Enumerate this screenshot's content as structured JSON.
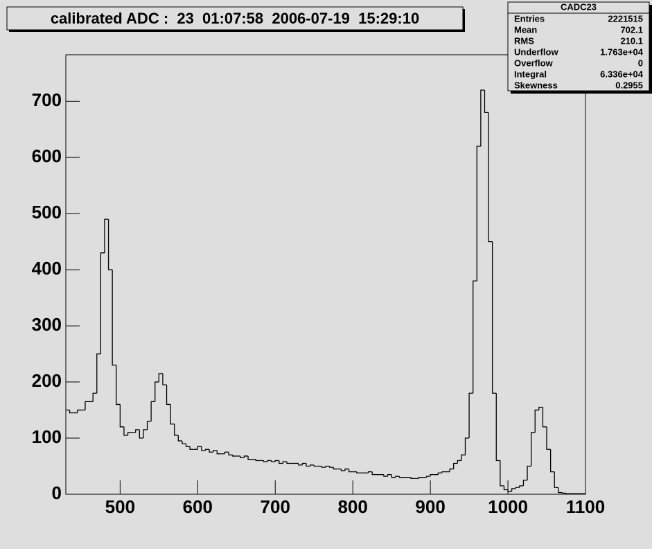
{
  "chart_data": {
    "type": "histogram",
    "title": "calibrated ADC :  23  01:07:58  2006-07-19  15:29:10",
    "color": "#000000",
    "xlim": [
      430,
      1100
    ],
    "ylim": [
      0,
      783
    ],
    "xticks": [
      500,
      600,
      700,
      800,
      900,
      1000,
      1100
    ],
    "yticks": [
      0,
      100,
      200,
      300,
      400,
      500,
      600,
      700
    ],
    "bins": [
      430,
      435,
      440,
      445,
      450,
      455,
      460,
      465,
      470,
      475,
      480,
      485,
      490,
      495,
      500,
      505,
      510,
      515,
      520,
      525,
      530,
      535,
      540,
      545,
      550,
      555,
      560,
      565,
      570,
      575,
      580,
      585,
      590,
      595,
      600,
      605,
      610,
      615,
      620,
      625,
      630,
      635,
      640,
      645,
      650,
      655,
      660,
      665,
      670,
      675,
      680,
      685,
      690,
      695,
      700,
      705,
      710,
      715,
      720,
      725,
      730,
      735,
      740,
      745,
      750,
      755,
      760,
      765,
      770,
      775,
      780,
      785,
      790,
      795,
      800,
      805,
      810,
      815,
      820,
      825,
      830,
      835,
      840,
      845,
      850,
      855,
      860,
      865,
      870,
      875,
      880,
      885,
      890,
      895,
      900,
      905,
      910,
      915,
      920,
      925,
      930,
      935,
      940,
      945,
      950,
      955,
      960,
      965,
      970,
      975,
      980,
      985,
      990,
      995,
      1000,
      1005,
      1010,
      1015,
      1020,
      1025,
      1030,
      1035,
      1040,
      1045,
      1050,
      1055,
      1060,
      1065,
      1070,
      1075,
      1080,
      1085,
      1090,
      1095,
      1100
    ],
    "counts": [
      150,
      145,
      145,
      150,
      150,
      165,
      165,
      180,
      250,
      430,
      490,
      400,
      230,
      160,
      120,
      105,
      110,
      110,
      115,
      100,
      115,
      130,
      165,
      200,
      215,
      195,
      160,
      125,
      105,
      95,
      90,
      85,
      80,
      80,
      85,
      78,
      80,
      75,
      78,
      72,
      72,
      75,
      70,
      68,
      68,
      65,
      68,
      62,
      62,
      60,
      60,
      58,
      60,
      58,
      60,
      55,
      58,
      55,
      55,
      55,
      52,
      55,
      50,
      52,
      50,
      50,
      48,
      50,
      48,
      45,
      45,
      42,
      45,
      40,
      40,
      38,
      38,
      38,
      40,
      35,
      35,
      35,
      32,
      35,
      30,
      32,
      30,
      30,
      30,
      28,
      28,
      30,
      30,
      32,
      35,
      35,
      38,
      40,
      40,
      45,
      55,
      60,
      70,
      100,
      180,
      380,
      620,
      720,
      680,
      450,
      180,
      60,
      15,
      8,
      5,
      10,
      12,
      15,
      25,
      50,
      110,
      150,
      155,
      120,
      80,
      40,
      12,
      3,
      2,
      1,
      1,
      1,
      1,
      1
    ]
  },
  "stats": {
    "title": "CADC23",
    "rows": [
      [
        "Entries",
        "2221515"
      ],
      [
        "Mean",
        "702.1"
      ],
      [
        "RMS",
        "210.1"
      ],
      [
        "Underflow",
        "1.763e+04"
      ],
      [
        "Overflow",
        "0"
      ],
      [
        "Integral",
        "6.336e+04"
      ],
      [
        "Skewness",
        "0.2955"
      ]
    ]
  }
}
